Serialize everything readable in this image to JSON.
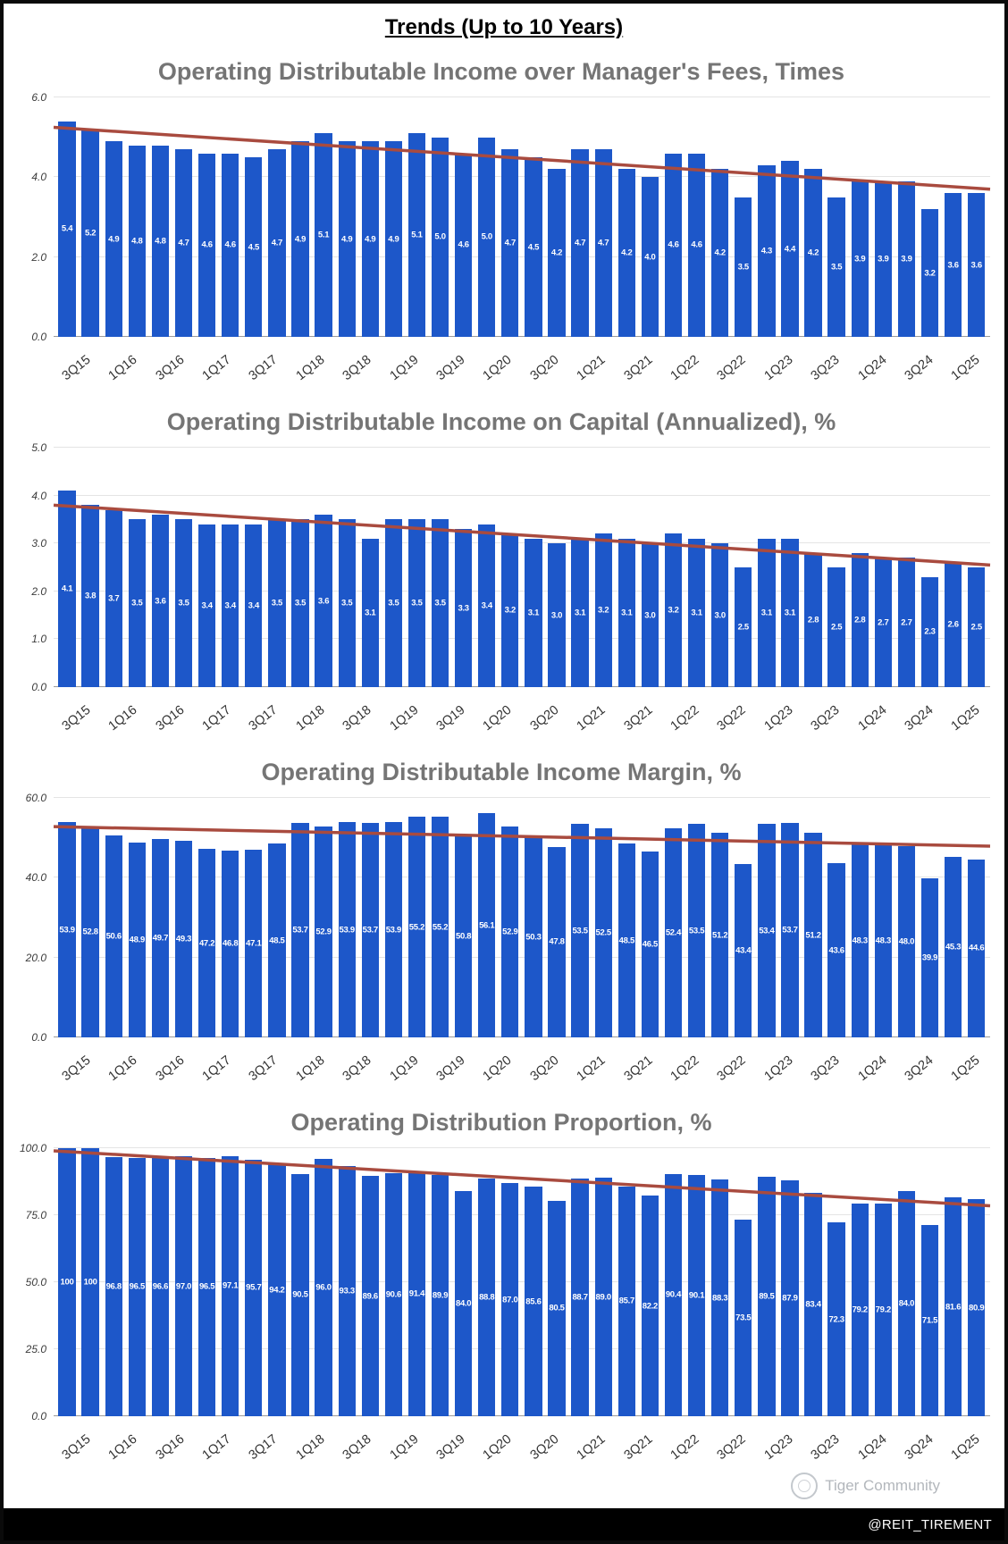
{
  "page_title": "Trends (Up to 10 Years)",
  "footer": {
    "handle": "@REIT_TIREMENT"
  },
  "watermark": {
    "label": "Tiger Community"
  },
  "colors": {
    "bar": "#1d57c9",
    "trend": "#a94b3f",
    "chart_title": "#757575",
    "bar_label": "#ffffff"
  },
  "x_labels": [
    "3Q15",
    "1Q16",
    "3Q16",
    "1Q17",
    "3Q17",
    "1Q18",
    "3Q18",
    "1Q19",
    "3Q19",
    "1Q20",
    "3Q20",
    "1Q21",
    "3Q21",
    "1Q22",
    "3Q22",
    "1Q23",
    "3Q23",
    "1Q24",
    "3Q24",
    "1Q25"
  ],
  "chart_data": [
    {
      "type": "bar",
      "title": "Operating Distributable Income over Manager's Fees, Times",
      "ylim": [
        0,
        6
      ],
      "yticks": [
        0,
        2,
        4,
        6
      ],
      "ytick_labels": [
        "0.0",
        "2.0",
        "4.0",
        "6.0"
      ],
      "x_tick_labels": [
        "3Q15",
        "1Q16",
        "3Q16",
        "1Q17",
        "3Q17",
        "1Q18",
        "3Q18",
        "1Q19",
        "3Q19",
        "1Q20",
        "3Q20",
        "1Q21",
        "3Q21",
        "1Q22",
        "3Q22",
        "1Q23",
        "3Q23",
        "1Q24",
        "3Q24",
        "1Q25"
      ],
      "values": [
        5.4,
        5.2,
        4.9,
        4.8,
        4.8,
        4.7,
        4.6,
        4.6,
        4.5,
        4.7,
        4.9,
        5.1,
        4.9,
        4.9,
        4.9,
        5.1,
        5.0,
        4.6,
        5.0,
        4.7,
        4.5,
        4.2,
        4.7,
        4.7,
        4.2,
        4.0,
        4.6,
        4.6,
        4.2,
        3.5,
        4.3,
        4.4,
        4.2,
        3.5,
        3.9,
        3.9,
        3.9,
        3.2,
        3.6,
        3.6
      ],
      "trendline": {
        "start": 5.25,
        "end": 3.7
      },
      "grid": true,
      "legend": "none"
    },
    {
      "type": "bar",
      "title": "Operating Distributable Income on Capital (Annualized), %",
      "ylim": [
        0,
        5
      ],
      "yticks": [
        0,
        1,
        2,
        3,
        4,
        5
      ],
      "ytick_labels": [
        "0.0",
        "1.0",
        "2.0",
        "3.0",
        "4.0",
        "5.0"
      ],
      "x_tick_labels": [
        "3Q15",
        "1Q16",
        "3Q16",
        "1Q17",
        "3Q17",
        "1Q18",
        "3Q18",
        "1Q19",
        "3Q19",
        "1Q20",
        "3Q20",
        "1Q21",
        "3Q21",
        "1Q22",
        "3Q22",
        "1Q23",
        "3Q23",
        "1Q24",
        "3Q24",
        "1Q25"
      ],
      "values": [
        4.1,
        3.8,
        3.7,
        3.5,
        3.6,
        3.5,
        3.4,
        3.4,
        3.4,
        3.5,
        3.5,
        3.6,
        3.5,
        3.1,
        3.5,
        3.5,
        3.5,
        3.3,
        3.4,
        3.2,
        3.1,
        3.0,
        3.1,
        3.2,
        3.1,
        3.0,
        3.2,
        3.1,
        3.0,
        2.5,
        3.1,
        3.1,
        2.8,
        2.5,
        2.8,
        2.7,
        2.7,
        2.3,
        2.6,
        2.5
      ],
      "trendline": {
        "start": 3.8,
        "end": 2.55
      },
      "grid": true,
      "legend": "none"
    },
    {
      "type": "bar",
      "title": "Operating Distributable Income Margin, %",
      "ylim": [
        0,
        60
      ],
      "yticks": [
        0,
        20,
        40,
        60
      ],
      "ytick_labels": [
        "0.0",
        "20.0",
        "40.0",
        "60.0"
      ],
      "x_tick_labels": [
        "3Q15",
        "1Q16",
        "3Q16",
        "1Q17",
        "3Q17",
        "1Q18",
        "3Q18",
        "1Q19",
        "3Q19",
        "1Q20",
        "3Q20",
        "1Q21",
        "3Q21",
        "1Q22",
        "3Q22",
        "1Q23",
        "3Q23",
        "1Q24",
        "3Q24",
        "1Q25"
      ],
      "values": [
        53.9,
        52.8,
        50.6,
        48.9,
        49.7,
        49.3,
        47.2,
        46.8,
        47.1,
        48.5,
        53.7,
        52.9,
        53.9,
        53.7,
        53.9,
        55.2,
        55.2,
        50.8,
        56.1,
        52.9,
        50.3,
        47.8,
        53.5,
        52.5,
        48.5,
        46.5,
        52.4,
        53.5,
        51.2,
        43.4,
        53.4,
        53.7,
        51.2,
        43.6,
        48.3,
        48.3,
        48.0,
        39.9,
        45.3,
        44.6
      ],
      "trendline": {
        "start": 52.8,
        "end": 47.9
      },
      "grid": true,
      "legend": "none"
    },
    {
      "type": "bar",
      "title": "Operating Distribution Proportion, %",
      "ylim": [
        0,
        100
      ],
      "yticks": [
        0,
        25,
        50,
        75,
        100
      ],
      "ytick_labels": [
        "0.0",
        "25.0",
        "50.0",
        "75.0",
        "100.0"
      ],
      "x_tick_labels": [
        "3Q15",
        "1Q16",
        "3Q16",
        "1Q17",
        "3Q17",
        "1Q18",
        "3Q18",
        "1Q19",
        "3Q19",
        "1Q20",
        "3Q20",
        "1Q21",
        "3Q21",
        "1Q22",
        "3Q22",
        "1Q23",
        "3Q23",
        "1Q24",
        "3Q24",
        "1Q25"
      ],
      "values": [
        100,
        100,
        96.8,
        96.5,
        96.6,
        97.0,
        96.5,
        97.1,
        95.7,
        94.2,
        90.5,
        96.0,
        93.3,
        89.6,
        90.6,
        91.4,
        89.9,
        84.0,
        88.8,
        87.0,
        85.6,
        80.5,
        88.7,
        89.0,
        85.7,
        82.2,
        90.4,
        90.1,
        88.3,
        73.5,
        89.5,
        87.9,
        83.4,
        72.3,
        79.2,
        79.2,
        84.0,
        71.5,
        81.6,
        80.9
      ],
      "trendline": {
        "start": 99.0,
        "end": 78.5
      },
      "grid": true,
      "legend": "none"
    }
  ]
}
